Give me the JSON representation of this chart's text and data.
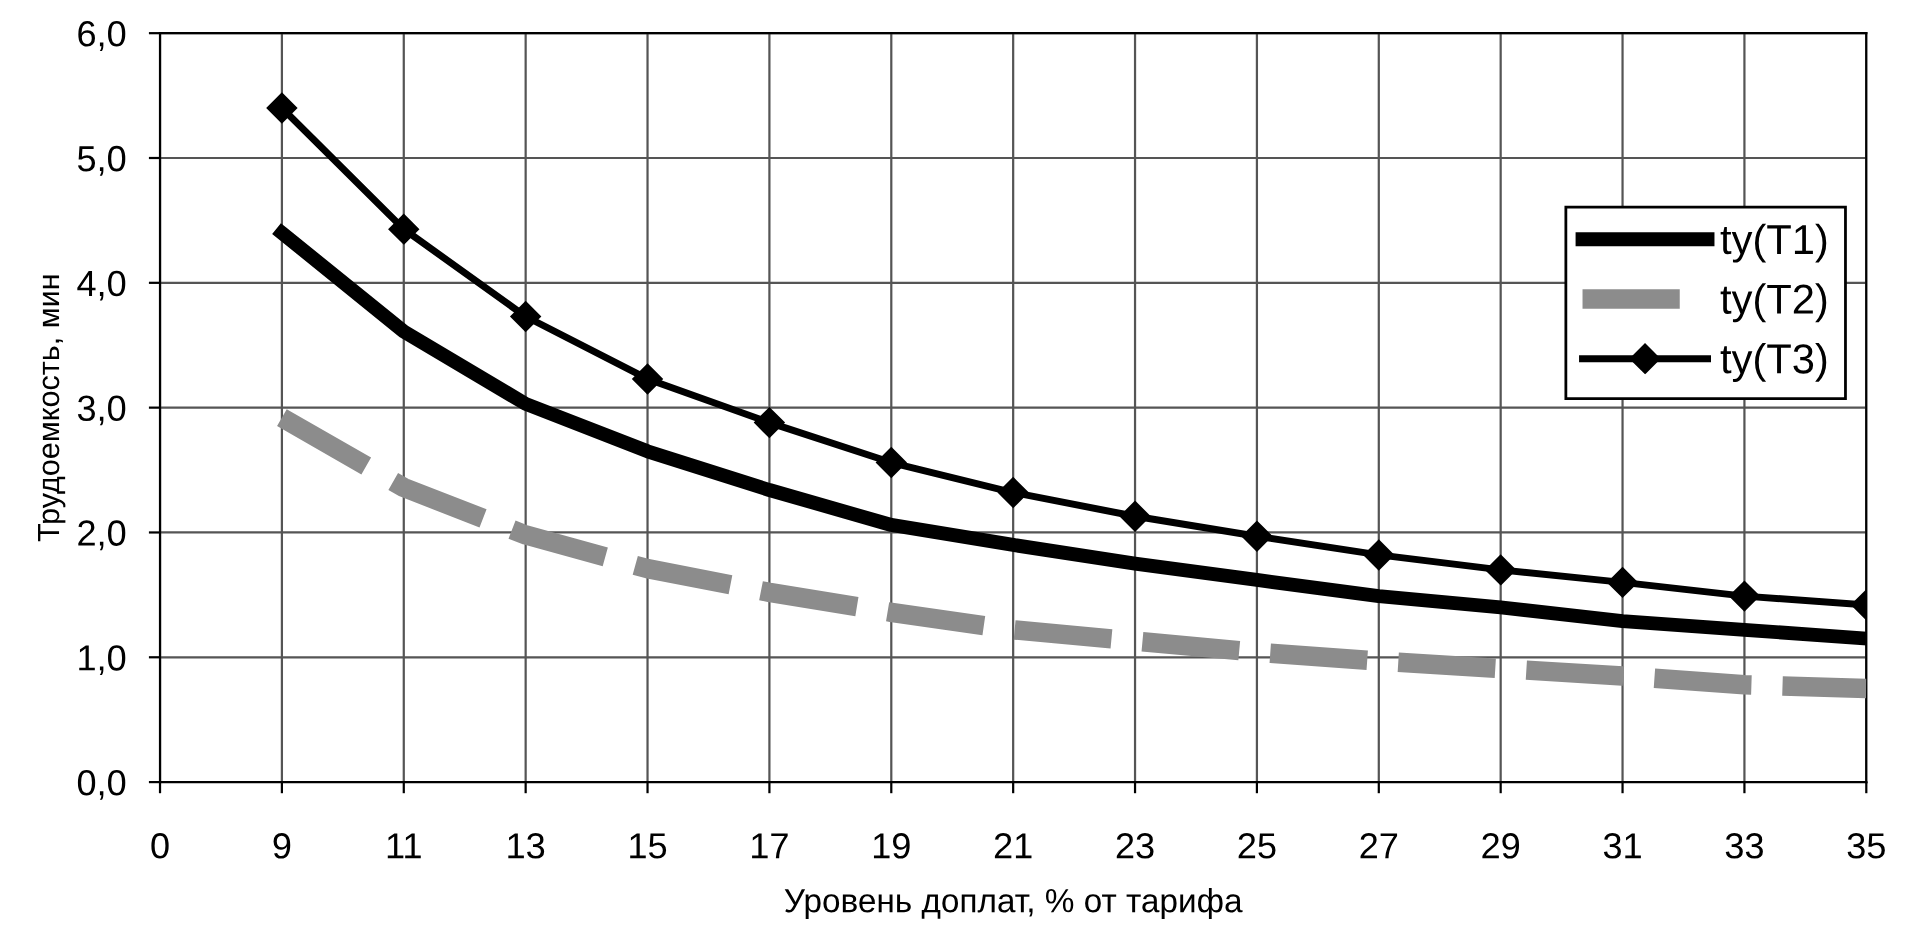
{
  "chart_data": {
    "type": "line",
    "xlabel": "Уровень доплат, % от тарифа",
    "ylabel": "Трудоемкость, мин",
    "categories": [
      "0",
      "9",
      "11",
      "13",
      "15",
      "17",
      "19",
      "21",
      "23",
      "25",
      "27",
      "29",
      "31",
      "33",
      "35"
    ],
    "series": [
      {
        "name": "ty(T1)",
        "color": "#000000",
        "marker": "none",
        "line_style": "solid",
        "values": [
          null,
          4.4,
          3.61,
          3.03,
          2.65,
          2.34,
          2.06,
          1.9,
          1.75,
          1.62,
          1.49,
          1.4,
          1.29,
          1.22,
          1.15
        ]
      },
      {
        "name": "ty(T2)",
        "color": "#8c8c8c",
        "marker": "none",
        "line_style": "dashed",
        "values": [
          null,
          2.92,
          2.36,
          1.98,
          1.71,
          1.52,
          1.36,
          1.22,
          1.13,
          1.04,
          0.97,
          0.91,
          0.85,
          0.78,
          0.75
        ]
      },
      {
        "name": "ty(T3)",
        "color": "#000000",
        "marker": "diamond",
        "line_style": "solid",
        "values": [
          null,
          5.4,
          4.43,
          3.73,
          3.23,
          2.88,
          2.56,
          2.32,
          2.13,
          1.97,
          1.82,
          1.7,
          1.6,
          1.49,
          1.42
        ]
      }
    ],
    "ylim": [
      0,
      6
    ],
    "yticks": [
      {
        "value": 0,
        "label": "0,0"
      },
      {
        "value": 1,
        "label": "1,0"
      },
      {
        "value": 2,
        "label": "2,0"
      },
      {
        "value": 3,
        "label": "3,0"
      },
      {
        "value": 4,
        "label": "4,0"
      },
      {
        "value": 5,
        "label": "5,0"
      },
      {
        "value": 6,
        "label": "6,0"
      }
    ],
    "grid": true,
    "legend": "right"
  }
}
